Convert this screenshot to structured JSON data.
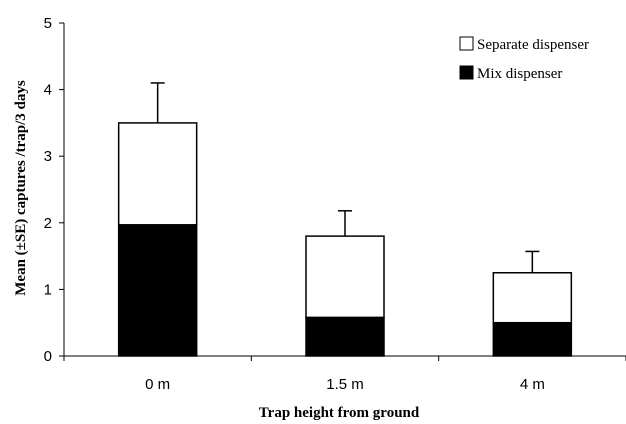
{
  "chart_data": {
    "type": "bar",
    "stacked": true,
    "categories": [
      "0 m",
      "1.5 m",
      "4 m"
    ],
    "series": [
      {
        "name": "Mix dispenser",
        "values": [
          1.97,
          0.58,
          0.5
        ],
        "color": "#000000"
      },
      {
        "name": "Separate dispenser",
        "values": [
          1.53,
          1.22,
          0.75
        ],
        "color": "#ffffff"
      }
    ],
    "totals": [
      3.5,
      1.8,
      1.25
    ],
    "error_upper": [
      4.1,
      2.18,
      1.57
    ],
    "xlabel": "Trap height from ground",
    "ylabel": "Mean (±SE) captures /trap/3 days",
    "ylim": [
      0,
      5
    ],
    "yticks": [
      "0",
      "1",
      "2",
      "3",
      "4",
      "5"
    ],
    "grid": false,
    "legend_position": "top-right"
  }
}
